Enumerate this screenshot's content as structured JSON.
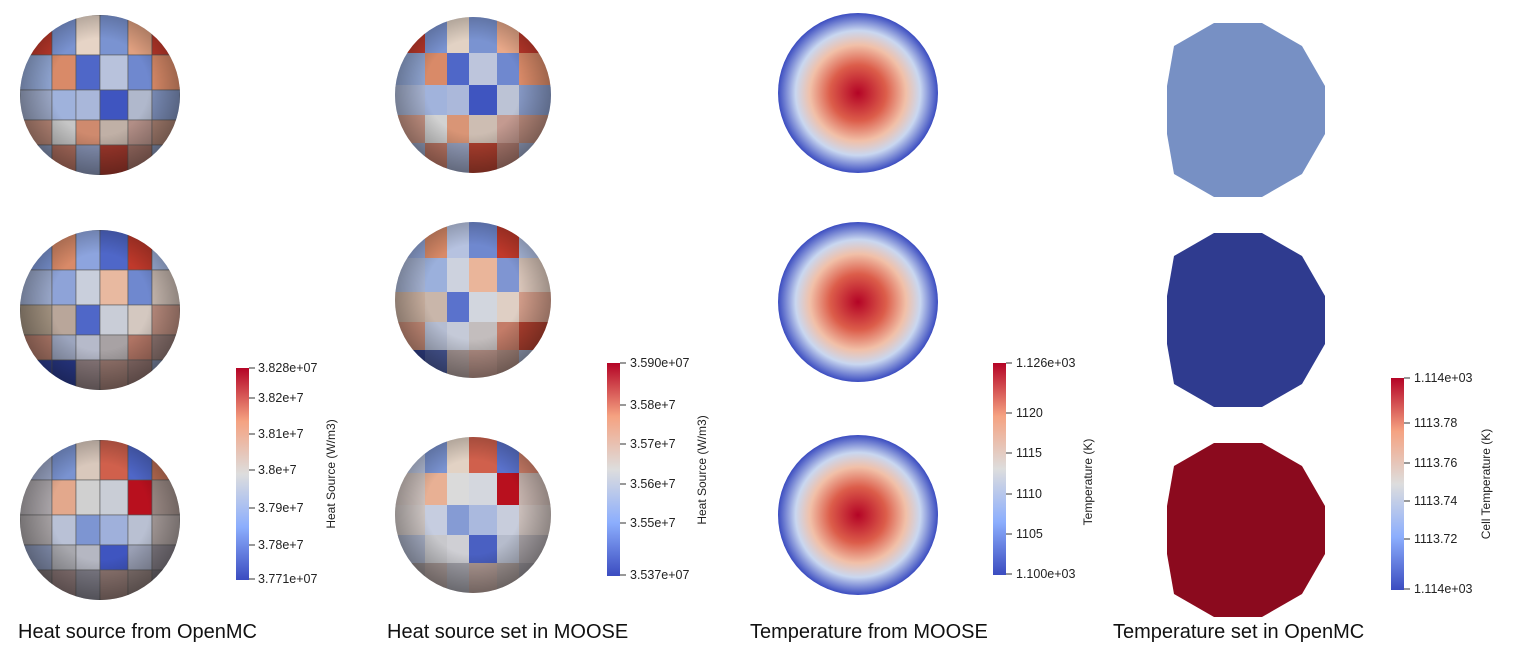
{
  "captions": {
    "panel1": "Heat source from OpenMC",
    "panel2": "Heat source set in MOOSE",
    "panel3": "Temperature from MOOSE",
    "panel4": "Temperature set in OpenMC"
  },
  "colorbars": {
    "cb1": {
      "title": "Heat Source (W/m3)",
      "ticks": [
        "3.828e+07",
        "3.82e+7",
        "3.81e+7",
        "3.8e+7",
        "3.79e+7",
        "3.78e+7",
        "3.771e+07"
      ]
    },
    "cb2": {
      "title": "Heat Source (W/m3)",
      "ticks": [
        "3.590e+07",
        "3.58e+7",
        "3.57e+7",
        "3.56e+7",
        "3.55e+7",
        "3.537e+07"
      ]
    },
    "cb3": {
      "title": "Temperature (K)",
      "ticks": [
        "1.126e+03",
        "1120",
        "1115",
        "1110",
        "1105",
        "1.100e+03"
      ]
    },
    "cb4": {
      "title": "Cell Temperature (K)",
      "ticks": [
        "1.114e+03",
        "1113.78",
        "1113.76",
        "1113.74",
        "1113.72",
        "1.114e+03"
      ]
    }
  },
  "colors": {
    "cool_low": "#3b4cc0",
    "mid": "#dddddd",
    "warm_high": "#b40426",
    "cell_mid": "#7790c4",
    "cell_low": "#2f3b8f",
    "cell_high": "#8b0a1e"
  }
}
